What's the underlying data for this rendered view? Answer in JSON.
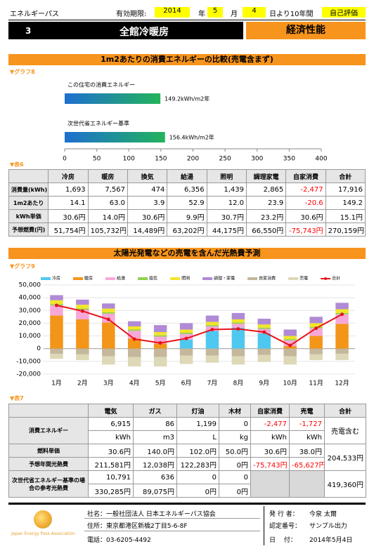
{
  "header": {
    "app": "エネルギーパス",
    "valid_label": "有効期限:",
    "year": "2014",
    "year_unit": "年",
    "month": "5",
    "month_unit": "月",
    "day": "4",
    "day_suffix": "日より10年間",
    "evaluation": "自己評価",
    "number": "3",
    "heating_type": "全館冷暖房",
    "category": "経済性能"
  },
  "sections": [
    {
      "title": "1m2あたりの消費エネルギーの比較(売電含まず)"
    },
    {
      "title": "太陽光発電などの売電を含んだ光熱費予測"
    }
  ],
  "chart_data": [
    {
      "type": "hbar",
      "label": "▼グラフ8",
      "categories": [
        "この住宅の消費エネルギー",
        "次世代省エネルギー基準"
      ],
      "values": [
        149.2,
        156.4
      ],
      "value_labels": [
        "149.2kWh/m2年",
        "156.4kWh/m2年"
      ],
      "colors": [
        "#1e6fd0",
        "#22b35c"
      ],
      "xlim": [
        0,
        400
      ],
      "xticks": [
        0,
        50,
        100,
        150,
        200,
        250,
        300,
        350,
        400
      ]
    },
    {
      "type": "stacked",
      "label": "▼グラフ9",
      "categories": [
        "1月",
        "2月",
        "3月",
        "4月",
        "5月",
        "6月",
        "7月",
        "8月",
        "9月",
        "10月",
        "11月",
        "12月"
      ],
      "series": [
        {
          "name": "冷房",
          "color": "#4fc8f0",
          "values": [
            0,
            0,
            0,
            0,
            0,
            7000,
            14000,
            16500,
            12000,
            0,
            0,
            0
          ]
        },
        {
          "name": "暖房",
          "color": "#f39519",
          "values": [
            26000,
            23000,
            20500,
            8000,
            4000,
            0,
            0,
            0,
            0,
            2000,
            10000,
            19500
          ]
        },
        {
          "name": "給湯",
          "color": "#f7a8d8",
          "values": [
            8000,
            7500,
            7000,
            6000,
            5500,
            4500,
            3500,
            3000,
            3500,
            4500,
            6000,
            7500
          ]
        },
        {
          "name": "換気",
          "color": "#92d050",
          "values": [
            1000,
            1000,
            1000,
            1000,
            1000,
            1000,
            1000,
            1000,
            1000,
            1000,
            1000,
            1000
          ]
        },
        {
          "name": "照明",
          "color": "#f2e52a",
          "values": [
            3000,
            3000,
            3000,
            2500,
            2500,
            2500,
            2500,
            2500,
            2500,
            2500,
            3000,
            3000
          ]
        },
        {
          "name": "調理・家電",
          "color": "#b08ad6",
          "values": [
            4000,
            4000,
            4000,
            4000,
            5500,
            5000,
            5000,
            5000,
            4500,
            5000,
            5000,
            5000
          ]
        },
        {
          "name": "自家消費",
          "color": "#c4b79c",
          "values": [
            -4000,
            -4500,
            -6000,
            -6500,
            -6500,
            -5500,
            -5500,
            -6000,
            -5000,
            -6000,
            -4500,
            -4000
          ]
        },
        {
          "name": "売電",
          "color": "#ddd8b6",
          "values": [
            -4000,
            -4500,
            -6500,
            -7500,
            -7500,
            -6500,
            -5500,
            -6500,
            -5500,
            -6500,
            -4500,
            -5000
          ]
        },
        {
          "name": "合計",
          "color": "#e8141b",
          "type": "line",
          "values": [
            34000,
            29500,
            23000,
            7500,
            4500,
            8000,
            15000,
            15500,
            13000,
            2500,
            16000,
            27000
          ]
        }
      ],
      "ylim": [
        -20000,
        50000
      ],
      "yticks": [
        {
          "value": -20000,
          "label": "-20,000"
        },
        {
          "value": -10000,
          "label": "-10,000"
        },
        0,
        {
          "value": 10000,
          "label": "10,000"
        },
        {
          "value": 20000,
          "label": "20,000"
        },
        {
          "value": 30000,
          "label": "30,000"
        },
        {
          "value": 40000,
          "label": "40,000"
        },
        {
          "value": 50000,
          "label": "50,000"
        }
      ],
      "grid": true
    }
  ],
  "table6": {
    "label": "▼表6",
    "header": [
      "冷房",
      "暖房",
      "換気",
      "給湯",
      "照明",
      "調理家電",
      "自家消費",
      "合計"
    ],
    "rows": [
      {
        "label": "消費量(kWh)",
        "values": [
          "1,693",
          "7,567",
          "474",
          "6,356",
          "1,439",
          "2,865",
          "-2,477",
          "17,916"
        ]
      },
      {
        "label": "1m2あたり",
        "values": [
          "14.1",
          "63.0",
          "3.9",
          "52.9",
          "12.0",
          "23.9",
          "-20.6",
          "149.2"
        ]
      },
      {
        "label": "kWh単価",
        "values": [
          "30.6円",
          "14.0円",
          "30.6円",
          "9.9円",
          "30.7円",
          "23.2円",
          "30.6円",
          "15.1円"
        ]
      },
      {
        "label": "予想燃費(円)",
        "values": [
          "51,754円",
          "105,732円",
          "14,489円",
          "63,202円",
          "44,175円",
          "66,550円",
          "-75,743円",
          "270,159円"
        ]
      }
    ]
  },
  "table7": {
    "label": "▼表7",
    "header": [
      "電気",
      "ガス",
      "灯油",
      "木材",
      "自家消費",
      "売電",
      "合計"
    ],
    "energy": {
      "label": "消費エネルギー",
      "values": [
        "6,915",
        "86",
        "1,199",
        "0",
        "-2,477",
        "-1,727"
      ],
      "units": [
        "kWh",
        "m3",
        "L",
        "kg",
        "kWh",
        "kWh"
      ],
      "total": "売電含む"
    },
    "unit_price": {
      "label": "燃料単価",
      "values": [
        "30.6円",
        "140.0円",
        "102.0円",
        "50.0円",
        "30.6円",
        "38.0円"
      ]
    },
    "annual_cost": {
      "label": "予想年間光熱費",
      "values": [
        "211,581円",
        "12,038円",
        "122,283円",
        "0円",
        "-75,743円",
        "-65,627円"
      ]
    },
    "cost_total": "204,533円",
    "reference": {
      "label": "次世代省エネルギー基準の場合の参考光熱費",
      "energy": [
        "10,791",
        "636",
        "0",
        "0"
      ],
      "cost": [
        "330,285円",
        "89,075円",
        "0円",
        "0円"
      ],
      "total": "419,360円"
    }
  },
  "footer": {
    "logo": "Japan Energy Pass Association",
    "company": "社名：一般社団法人 日本エネルギーパス協会",
    "address": "住所：東京都港区新橋2丁目5-6-8F",
    "phone": "電話：03-6205-4492",
    "issuer_label": "発 行 者：",
    "issuer": "今泉 太爾",
    "cert_label": "認定番号：",
    "cert": "サンプル出力",
    "date_label": "日　 付：",
    "date": "2014年5月4日"
  }
}
